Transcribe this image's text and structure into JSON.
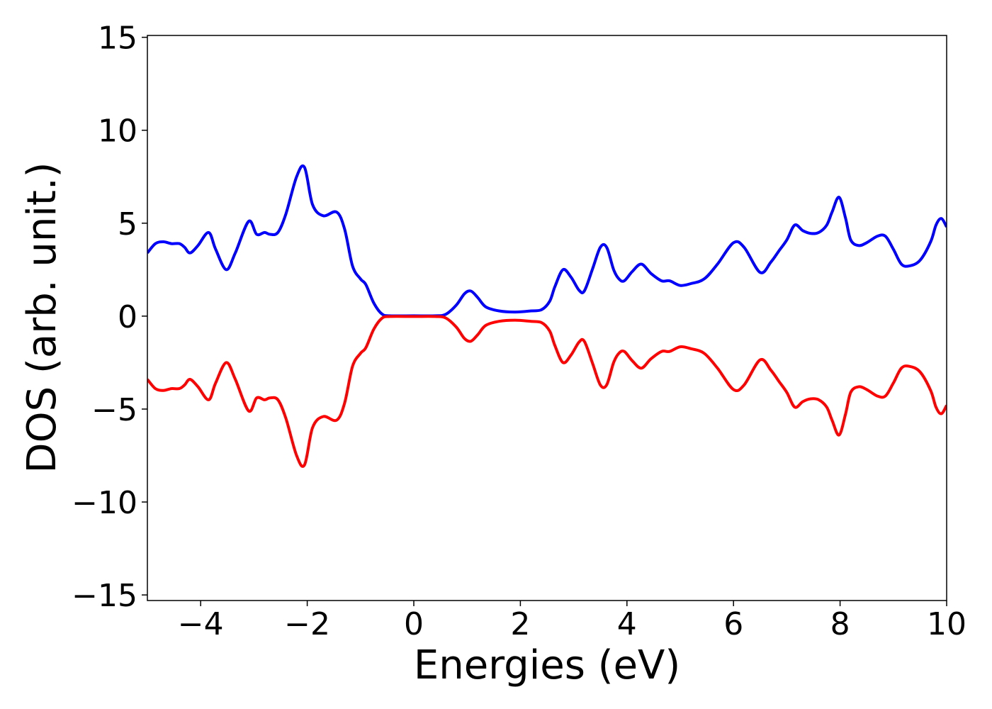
{
  "chart_data": {
    "type": "line",
    "title": "",
    "xlabel": "Energies (eV)",
    "ylabel": "DOS (arb. unit.)",
    "xlim": [
      -5,
      10
    ],
    "ylim": [
      -15.3,
      15.1
    ],
    "grid": false,
    "legend": "none",
    "xticks": [
      -4,
      -2,
      0,
      2,
      4,
      6,
      8,
      10
    ],
    "yticks": [
      -15,
      -10,
      -5,
      0,
      5,
      10,
      15
    ],
    "xtick_labels": [
      "−4",
      "−2",
      "0",
      "2",
      "4",
      "6",
      "8",
      "10"
    ],
    "ytick_labels": [
      "−15",
      "−10",
      "−5",
      "0",
      "5",
      "10",
      "15"
    ],
    "series": [
      {
        "color": "#0000ff",
        "x": [
          -5.0,
          -4.85,
          -4.7,
          -4.55,
          -4.4,
          -4.3,
          -4.2,
          -4.05,
          -3.85,
          -3.72,
          -3.52,
          -3.35,
          -3.1,
          -2.95,
          -2.8,
          -2.7,
          -2.55,
          -2.4,
          -2.2,
          -2.05,
          -1.9,
          -1.7,
          -1.45,
          -1.3,
          -1.15,
          -1.0,
          -0.9,
          -0.75,
          -0.6,
          -0.45,
          0.0,
          0.4,
          0.6,
          0.8,
          0.95,
          1.07,
          1.2,
          1.35,
          1.6,
          1.9,
          2.2,
          2.4,
          2.55,
          2.65,
          2.8,
          2.95,
          3.1,
          3.2,
          3.35,
          3.5,
          3.62,
          3.75,
          3.85,
          3.95,
          4.1,
          4.27,
          4.45,
          4.65,
          4.8,
          5.0,
          5.2,
          5.45,
          5.7,
          6.0,
          6.2,
          6.5,
          6.7,
          6.85,
          7.0,
          7.15,
          7.3,
          7.45,
          7.6,
          7.75,
          7.85,
          7.98,
          8.1,
          8.2,
          8.35,
          8.5,
          8.7,
          8.85,
          9.0,
          9.15,
          9.3,
          9.5,
          9.7,
          9.8,
          9.9,
          10.0
        ],
        "y": [
          3.4,
          3.9,
          4.0,
          3.9,
          3.9,
          3.7,
          3.4,
          3.8,
          4.5,
          3.6,
          2.5,
          3.4,
          5.1,
          4.4,
          4.5,
          4.4,
          4.5,
          5.5,
          7.5,
          8.0,
          6.0,
          5.4,
          5.6,
          4.7,
          2.7,
          2.0,
          1.7,
          0.7,
          0.12,
          0.02,
          0.02,
          0.02,
          0.1,
          0.6,
          1.2,
          1.35,
          1.0,
          0.5,
          0.28,
          0.22,
          0.28,
          0.35,
          0.8,
          1.6,
          2.5,
          2.1,
          1.4,
          1.35,
          2.5,
          3.7,
          3.7,
          2.5,
          2.0,
          1.9,
          2.4,
          2.8,
          2.3,
          1.9,
          1.9,
          1.65,
          1.75,
          2.0,
          2.8,
          3.95,
          3.7,
          2.35,
          2.9,
          3.5,
          4.1,
          4.9,
          4.6,
          4.45,
          4.5,
          4.9,
          5.6,
          6.4,
          5.3,
          4.1,
          3.8,
          3.95,
          4.3,
          4.3,
          3.6,
          2.8,
          2.7,
          3.0,
          4.0,
          4.9,
          5.25,
          4.8
        ]
      },
      {
        "color": "#ff0000",
        "x": [
          -5.0,
          -4.85,
          -4.7,
          -4.55,
          -4.4,
          -4.3,
          -4.2,
          -4.05,
          -3.85,
          -3.72,
          -3.52,
          -3.35,
          -3.1,
          -2.95,
          -2.8,
          -2.7,
          -2.55,
          -2.4,
          -2.2,
          -2.05,
          -1.9,
          -1.7,
          -1.45,
          -1.3,
          -1.15,
          -1.0,
          -0.9,
          -0.75,
          -0.6,
          -0.45,
          0.0,
          0.4,
          0.6,
          0.8,
          0.95,
          1.07,
          1.2,
          1.35,
          1.6,
          1.9,
          2.2,
          2.4,
          2.55,
          2.65,
          2.8,
          2.95,
          3.1,
          3.2,
          3.35,
          3.5,
          3.62,
          3.75,
          3.85,
          3.95,
          4.1,
          4.27,
          4.45,
          4.65,
          4.8,
          5.0,
          5.2,
          5.45,
          5.7,
          6.0,
          6.2,
          6.5,
          6.7,
          6.85,
          7.0,
          7.15,
          7.3,
          7.45,
          7.6,
          7.75,
          7.85,
          7.98,
          8.1,
          8.2,
          8.35,
          8.5,
          8.7,
          8.85,
          9.0,
          9.15,
          9.3,
          9.5,
          9.7,
          9.8,
          9.9,
          10.0
        ],
        "y": [
          -3.4,
          -3.9,
          -4.0,
          -3.9,
          -3.9,
          -3.7,
          -3.4,
          -3.8,
          -4.5,
          -3.6,
          -2.5,
          -3.4,
          -5.1,
          -4.4,
          -4.5,
          -4.4,
          -4.5,
          -5.5,
          -7.5,
          -8.0,
          -6.0,
          -5.4,
          -5.6,
          -4.7,
          -2.7,
          -2.0,
          -1.7,
          -0.7,
          -0.12,
          -0.02,
          -0.02,
          -0.02,
          -0.1,
          -0.6,
          -1.2,
          -1.35,
          -1.0,
          -0.5,
          -0.28,
          -0.22,
          -0.28,
          -0.35,
          -0.8,
          -1.6,
          -2.5,
          -2.1,
          -1.4,
          -1.35,
          -2.5,
          -3.7,
          -3.7,
          -2.5,
          -2.0,
          -1.9,
          -2.4,
          -2.8,
          -2.3,
          -1.9,
          -1.9,
          -1.65,
          -1.75,
          -2.0,
          -2.8,
          -3.95,
          -3.7,
          -2.35,
          -2.9,
          -3.5,
          -4.1,
          -4.9,
          -4.6,
          -4.45,
          -4.5,
          -4.9,
          -5.6,
          -6.4,
          -5.3,
          -4.1,
          -3.8,
          -3.95,
          -4.3,
          -4.3,
          -3.6,
          -2.8,
          -2.7,
          -3.0,
          -4.0,
          -4.9,
          -5.25,
          -4.8
        ]
      }
    ]
  }
}
